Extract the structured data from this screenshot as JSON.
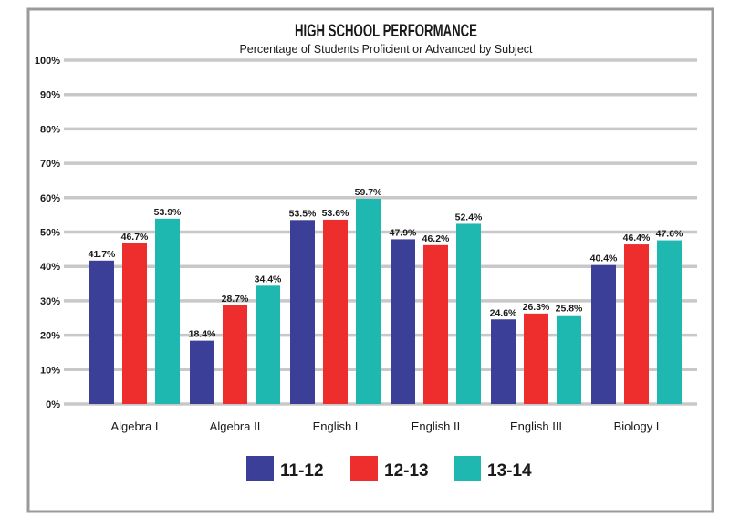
{
  "chart_data": {
    "type": "bar",
    "title": "HIGH SCHOOL PERFORMANCE",
    "subtitle": "Percentage of Students Proficient or Advanced by Subject",
    "xlabel": "",
    "ylabel": "",
    "ylim": [
      0,
      100
    ],
    "yticks": [
      0,
      10,
      20,
      30,
      40,
      50,
      60,
      70,
      80,
      90,
      100
    ],
    "ytick_labels": [
      "0%",
      "10%",
      "20%",
      "30%",
      "40%",
      "50%",
      "60%",
      "70%",
      "80%",
      "90%",
      "100%"
    ],
    "grid": true,
    "legend_position": "bottom",
    "categories": [
      "Algebra I",
      "Algebra II",
      "English I",
      "English II",
      "English III",
      "Biology I"
    ],
    "series": [
      {
        "name": "11-12",
        "color": "#3b3f98",
        "values": [
          41.7,
          18.4,
          53.5,
          47.9,
          24.6,
          40.4
        ],
        "labels": [
          "41.7%",
          "18.4%",
          "53.5%",
          "47.9%",
          "24.6%",
          "40.4%"
        ]
      },
      {
        "name": "12-13",
        "color": "#ee2e2c",
        "values": [
          46.7,
          28.7,
          53.6,
          46.2,
          26.3,
          46.4
        ],
        "labels": [
          "46.7%",
          "28.7%",
          "53.6%",
          "46.2%",
          "26.3%",
          "46.4%"
        ]
      },
      {
        "name": "13-14",
        "color": "#1fb8b0",
        "values": [
          53.9,
          34.4,
          59.7,
          52.4,
          25.8,
          47.6
        ],
        "labels": [
          "53.9%",
          "34.4%",
          "59.7%",
          "52.4%",
          "25.8%",
          "47.6%"
        ]
      }
    ],
    "colors": {
      "grid": "#c8c8c8",
      "frame": "#9a9a9a",
      "text": "#1a1a1a"
    }
  }
}
